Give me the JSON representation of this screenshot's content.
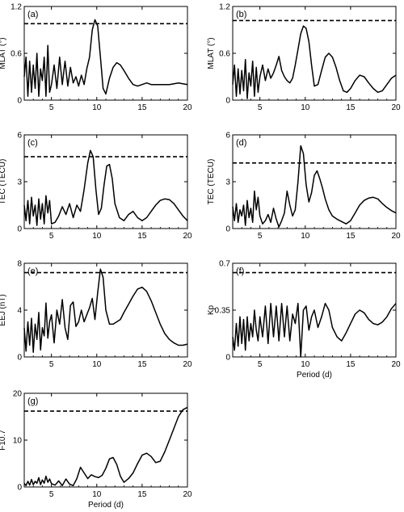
{
  "chart_data": [
    {
      "type": "line",
      "panel_label": "(a)",
      "xlabel": "",
      "ylabel": "MLAT (°)",
      "xlim": [
        2,
        20
      ],
      "ylim": [
        0,
        1.2
      ],
      "x_ticks": [
        5,
        10,
        15,
        20
      ],
      "y_ticks": [
        0,
        0.6,
        1.2
      ],
      "y_tick_labels": [
        "0",
        "0.6",
        "1.2"
      ],
      "threshold": 0.98,
      "series": [
        {
          "x": [
            2.0,
            2.2,
            2.4,
            2.6,
            2.8,
            3.0,
            3.2,
            3.4,
            3.6,
            3.8,
            4.0,
            4.2,
            4.4,
            4.6,
            4.8,
            5.0,
            5.3,
            5.6,
            5.9,
            6.2,
            6.5,
            6.8,
            7.1,
            7.4,
            7.7,
            8.0,
            8.3,
            8.6,
            8.9,
            9.2,
            9.5,
            9.8,
            10.1,
            10.4,
            10.7,
            11.0,
            11.4,
            11.8,
            12.2,
            12.6,
            13.0,
            13.5,
            14.0,
            14.5,
            15.0,
            15.5,
            16.0,
            17.0,
            18.0,
            19.0,
            20.0
          ],
          "y": [
            0.3,
            0.55,
            0.05,
            0.5,
            0.1,
            0.45,
            0.15,
            0.6,
            0.05,
            0.4,
            0.25,
            0.55,
            0.05,
            0.7,
            0.1,
            0.2,
            0.45,
            0.15,
            0.55,
            0.2,
            0.5,
            0.18,
            0.42,
            0.22,
            0.3,
            0.18,
            0.32,
            0.2,
            0.4,
            0.55,
            0.9,
            1.03,
            0.95,
            0.55,
            0.15,
            0.08,
            0.28,
            0.42,
            0.48,
            0.45,
            0.38,
            0.28,
            0.2,
            0.18,
            0.2,
            0.22,
            0.2,
            0.2,
            0.2,
            0.22,
            0.2
          ]
        }
      ]
    },
    {
      "type": "line",
      "panel_label": "(b)",
      "xlabel": "",
      "ylabel": "MLAT (°)",
      "xlim": [
        2,
        20
      ],
      "ylim": [
        0,
        1.2
      ],
      "x_ticks": [
        5,
        10,
        15,
        20
      ],
      "y_ticks": [
        0,
        0.6,
        1.2
      ],
      "y_tick_labels": [
        "0",
        "0.6",
        "1.2"
      ],
      "threshold": 1.02,
      "series": [
        {
          "x": [
            2.0,
            2.2,
            2.4,
            2.6,
            2.8,
            3.0,
            3.2,
            3.4,
            3.6,
            3.8,
            4.0,
            4.2,
            4.4,
            4.6,
            4.8,
            5.0,
            5.3,
            5.6,
            5.9,
            6.2,
            6.5,
            6.8,
            7.1,
            7.4,
            7.7,
            8.0,
            8.3,
            8.6,
            8.9,
            9.2,
            9.5,
            9.8,
            10.1,
            10.4,
            10.7,
            11.0,
            11.4,
            11.8,
            12.2,
            12.6,
            13.0,
            13.4,
            13.8,
            14.2,
            14.6,
            15.0,
            15.5,
            16.0,
            16.5,
            17.0,
            17.5,
            18.0,
            18.5,
            19.0,
            19.5,
            20.0
          ],
          "y": [
            0.2,
            0.45,
            0.05,
            0.4,
            0.08,
            0.38,
            0.12,
            0.52,
            0.02,
            0.35,
            0.18,
            0.5,
            0.05,
            0.42,
            0.1,
            0.3,
            0.45,
            0.25,
            0.4,
            0.28,
            0.35,
            0.45,
            0.56,
            0.38,
            0.3,
            0.25,
            0.22,
            0.28,
            0.45,
            0.65,
            0.85,
            0.95,
            0.92,
            0.75,
            0.45,
            0.18,
            0.2,
            0.38,
            0.55,
            0.6,
            0.55,
            0.42,
            0.25,
            0.12,
            0.1,
            0.15,
            0.25,
            0.32,
            0.3,
            0.22,
            0.15,
            0.1,
            0.12,
            0.2,
            0.28,
            0.32
          ]
        }
      ]
    },
    {
      "type": "line",
      "panel_label": "(c)",
      "xlabel": "",
      "ylabel": "TEC (TECU)",
      "xlim": [
        2,
        20
      ],
      "ylim": [
        0,
        6
      ],
      "x_ticks": [
        5,
        10,
        15,
        20
      ],
      "y_ticks": [
        0,
        3,
        6
      ],
      "y_tick_labels": [
        "0",
        "3",
        "6"
      ],
      "threshold": 4.6,
      "series": [
        {
          "x": [
            2.0,
            2.2,
            2.4,
            2.6,
            2.8,
            3.0,
            3.2,
            3.4,
            3.6,
            3.8,
            4.0,
            4.2,
            4.4,
            4.6,
            4.8,
            5.0,
            5.4,
            5.8,
            6.2,
            6.6,
            7.0,
            7.4,
            7.8,
            8.2,
            8.6,
            9.0,
            9.3,
            9.6,
            9.9,
            10.2,
            10.5,
            10.8,
            11.1,
            11.4,
            11.7,
            12.0,
            12.5,
            13.0,
            13.5,
            14.0,
            14.5,
            15.0,
            15.5,
            16.0,
            16.5,
            17.0,
            17.5,
            18.0,
            18.5,
            19.0,
            19.5,
            20.0
          ],
          "y": [
            1.5,
            0.5,
            1.8,
            0.3,
            2.0,
            0.8,
            1.5,
            0.2,
            1.9,
            0.6,
            1.6,
            0.3,
            2.1,
            1.0,
            1.8,
            0.3,
            0.4,
            0.8,
            1.4,
            0.9,
            1.6,
            0.7,
            1.5,
            1.1,
            2.5,
            4.2,
            5.0,
            4.6,
            2.5,
            0.9,
            1.3,
            2.8,
            4.0,
            4.1,
            3.2,
            1.6,
            0.7,
            0.5,
            0.9,
            1.1,
            0.7,
            0.5,
            0.7,
            1.1,
            1.5,
            1.8,
            1.9,
            1.85,
            1.6,
            1.2,
            0.8,
            0.5
          ]
        }
      ]
    },
    {
      "type": "line",
      "panel_label": "(d)",
      "xlabel": "",
      "ylabel": "TEC (TECU)",
      "xlim": [
        2,
        20
      ],
      "ylim": [
        0,
        6
      ],
      "x_ticks": [
        5,
        10,
        15,
        20
      ],
      "y_ticks": [
        0,
        3,
        6
      ],
      "y_tick_labels": [
        "0",
        "3",
        "6"
      ],
      "threshold": 4.2,
      "series": [
        {
          "x": [
            2.0,
            2.2,
            2.4,
            2.6,
            2.8,
            3.0,
            3.2,
            3.4,
            3.6,
            3.8,
            4.0,
            4.2,
            4.4,
            4.6,
            4.8,
            5.0,
            5.3,
            5.6,
            5.9,
            6.2,
            6.5,
            6.8,
            7.1,
            7.4,
            7.7,
            8.0,
            8.3,
            8.6,
            8.9,
            9.2,
            9.5,
            9.8,
            10.1,
            10.4,
            10.7,
            11.0,
            11.3,
            11.6,
            11.9,
            12.2,
            12.6,
            13.0,
            13.5,
            14.0,
            14.5,
            15.0,
            15.5,
            16.0,
            16.5,
            17.0,
            17.5,
            18.0,
            18.5,
            19.0,
            19.5,
            20.0
          ],
          "y": [
            1.4,
            0.5,
            1.6,
            0.4,
            1.2,
            0.8,
            1.5,
            0.2,
            1.8,
            0.7,
            1.3,
            0.4,
            2.4,
            1.2,
            2.0,
            0.8,
            0.3,
            0.5,
            0.9,
            0.4,
            1.3,
            0.6,
            0.1,
            0.5,
            1.0,
            2.4,
            1.5,
            0.8,
            1.2,
            3.0,
            5.3,
            4.8,
            2.8,
            1.7,
            2.3,
            3.4,
            3.7,
            3.2,
            2.6,
            1.9,
            1.2,
            0.8,
            0.6,
            0.45,
            0.3,
            0.5,
            1.0,
            1.5,
            1.8,
            1.95,
            2.0,
            1.9,
            1.6,
            1.35,
            1.15,
            1.0
          ]
        }
      ]
    },
    {
      "type": "line",
      "panel_label": "(e)",
      "xlabel": "",
      "ylabel": "EEJ (nT)",
      "xlim": [
        2,
        20
      ],
      "ylim": [
        0,
        8
      ],
      "x_ticks": [
        5,
        10,
        15,
        20
      ],
      "y_ticks": [
        0,
        4,
        8
      ],
      "y_tick_labels": [
        "0",
        "4",
        "8"
      ],
      "threshold": 7.2,
      "series": [
        {
          "x": [
            2.0,
            2.2,
            2.4,
            2.6,
            2.8,
            3.0,
            3.2,
            3.4,
            3.6,
            3.8,
            4.0,
            4.2,
            4.4,
            4.6,
            4.8,
            5.0,
            5.3,
            5.6,
            5.9,
            6.2,
            6.5,
            6.8,
            7.1,
            7.4,
            7.7,
            8.0,
            8.3,
            8.6,
            8.9,
            9.2,
            9.5,
            9.8,
            10.1,
            10.4,
            10.7,
            11.0,
            11.4,
            11.8,
            12.2,
            12.6,
            13.0,
            13.5,
            14.0,
            14.5,
            15.0,
            15.5,
            16.0,
            16.5,
            17.0,
            17.5,
            18.0,
            18.5,
            19.0,
            19.5,
            20.0
          ],
          "y": [
            2.5,
            0.5,
            3.0,
            1.0,
            3.3,
            0.4,
            2.8,
            1.5,
            3.8,
            0.6,
            2.5,
            1.8,
            4.6,
            1.6,
            3.0,
            3.6,
            1.2,
            4.0,
            2.8,
            4.9,
            2.5,
            1.5,
            4.4,
            4.7,
            2.6,
            3.0,
            4.0,
            3.0,
            3.6,
            4.2,
            5.0,
            3.2,
            5.5,
            7.5,
            6.8,
            4.0,
            2.8,
            2.8,
            3.0,
            3.2,
            3.8,
            4.5,
            5.2,
            5.8,
            5.95,
            5.6,
            4.8,
            3.8,
            2.8,
            2.0,
            1.5,
            1.2,
            1.0,
            1.0,
            1.1
          ]
        }
      ]
    },
    {
      "type": "line",
      "panel_label": "(f)",
      "xlabel": "Period (d)",
      "ylabel": "Kp",
      "xlim": [
        2,
        20
      ],
      "ylim": [
        0,
        0.7
      ],
      "x_ticks": [
        5,
        10,
        15,
        20
      ],
      "y_ticks": [
        0,
        0.35,
        0.7
      ],
      "y_tick_labels": [
        "0",
        "0.35",
        "0.7"
      ],
      "threshold": 0.63,
      "series": [
        {
          "x": [
            2.0,
            2.2,
            2.4,
            2.6,
            2.8,
            3.0,
            3.2,
            3.4,
            3.6,
            3.8,
            4.0,
            4.2,
            4.4,
            4.6,
            4.8,
            5.0,
            5.3,
            5.6,
            5.9,
            6.2,
            6.5,
            6.8,
            7.1,
            7.4,
            7.7,
            8.0,
            8.3,
            8.6,
            8.9,
            9.2,
            9.5,
            9.8,
            10.1,
            10.4,
            10.7,
            11.0,
            11.4,
            11.8,
            12.2,
            12.6,
            13.0,
            13.5,
            14.0,
            14.5,
            15.0,
            15.5,
            16.0,
            16.5,
            17.0,
            17.5,
            18.0,
            18.5,
            19.0,
            19.5,
            20.0
          ],
          "y": [
            0.15,
            0.05,
            0.25,
            0.08,
            0.3,
            0.1,
            0.28,
            0.05,
            0.3,
            0.12,
            0.25,
            0.15,
            0.35,
            0.2,
            0.12,
            0.3,
            0.15,
            0.38,
            0.1,
            0.4,
            0.15,
            0.38,
            0.12,
            0.4,
            0.15,
            0.38,
            0.12,
            0.32,
            0.25,
            0.4,
            0.0,
            0.35,
            0.38,
            0.2,
            0.3,
            0.35,
            0.22,
            0.3,
            0.4,
            0.35,
            0.22,
            0.15,
            0.12,
            0.18,
            0.25,
            0.32,
            0.35,
            0.33,
            0.28,
            0.25,
            0.24,
            0.26,
            0.3,
            0.36,
            0.4
          ]
        }
      ]
    },
    {
      "type": "line",
      "panel_label": "(g)",
      "xlabel": "Period (d)",
      "ylabel": "F10.7",
      "xlim": [
        2,
        20
      ],
      "ylim": [
        0,
        20
      ],
      "x_ticks": [
        5,
        10,
        15,
        20
      ],
      "y_ticks": [
        0,
        10,
        20
      ],
      "y_tick_labels": [
        "0",
        "10",
        "20"
      ],
      "threshold": 16.2,
      "series": [
        {
          "x": [
            2.0,
            2.2,
            2.4,
            2.6,
            2.8,
            3.0,
            3.2,
            3.4,
            3.6,
            3.8,
            4.0,
            4.2,
            4.4,
            4.6,
            4.8,
            5.0,
            5.4,
            5.8,
            6.2,
            6.6,
            7.0,
            7.4,
            7.8,
            8.2,
            8.6,
            9.0,
            9.4,
            9.8,
            10.2,
            10.6,
            11.0,
            11.4,
            11.8,
            12.2,
            12.6,
            13.0,
            13.5,
            14.0,
            14.5,
            15.0,
            15.5,
            16.0,
            16.5,
            17.0,
            17.5,
            18.0,
            18.5,
            19.0,
            19.5,
            20.0
          ],
          "y": [
            0.8,
            0.3,
            1.2,
            0.4,
            1.6,
            0.5,
            1.2,
            0.8,
            2.0,
            0.5,
            1.5,
            0.8,
            2.3,
            1.0,
            1.7,
            0.7,
            0.4,
            1.3,
            0.3,
            1.7,
            0.6,
            0.3,
            1.8,
            4.2,
            3.0,
            1.8,
            2.6,
            2.2,
            2.0,
            2.5,
            4.0,
            6.0,
            6.3,
            4.8,
            2.3,
            1.0,
            1.8,
            3.0,
            5.0,
            6.8,
            7.2,
            6.5,
            5.2,
            5.5,
            7.5,
            10.0,
            12.5,
            15.0,
            16.5,
            17.0
          ]
        }
      ]
    }
  ]
}
